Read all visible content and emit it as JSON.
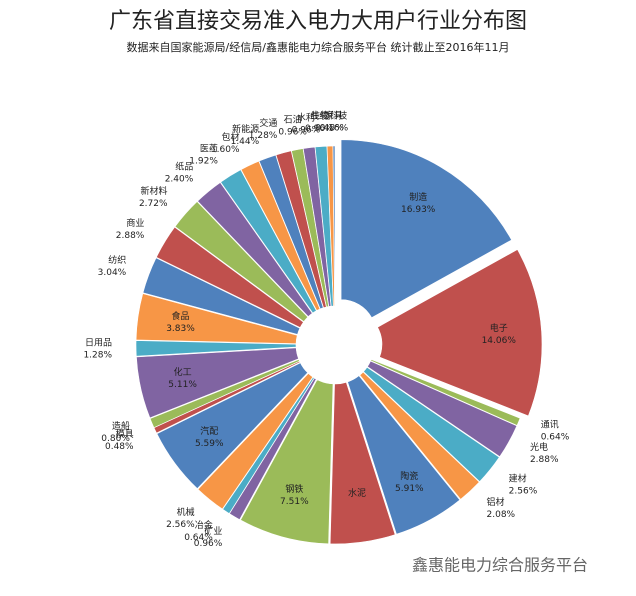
{
  "chart_data": {
    "type": "pie",
    "title": "广东省直接交易准入电力大用户行业分布图",
    "subtitle": "数据来自国家能源局/经信局/鑫惠能电力综合服务平台 统计截止至2016年11月",
    "watermark": "鑫惠能电力综合服务平台",
    "categories": [
      "制造",
      "电子",
      "通讯",
      "光电",
      "建材",
      "铝材",
      "陶瓷",
      "水泥",
      "钢铁",
      "矿业",
      "冶金",
      "机械",
      "汽配",
      "模具",
      "造船",
      "化工",
      "日用品",
      "食品",
      "纺织",
      "商业",
      "新材料",
      "纸品",
      "医药",
      "包材",
      "新能源",
      "交通",
      "石油",
      "水利",
      "线缆",
      "生物科技",
      "家具"
    ],
    "values": [
      16.93,
      14.06,
      0.64,
      2.88,
      2.56,
      2.08,
      5.91,
      5.38,
      7.51,
      0.96,
      0.64,
      2.56,
      5.59,
      0.48,
      0.8,
      5.11,
      1.28,
      3.83,
      3.04,
      2.88,
      2.72,
      2.4,
      1.92,
      1.6,
      1.44,
      1.28,
      0.96,
      0.96,
      0.96,
      0.48,
      0.16
    ],
    "value_labels": [
      "16.93%",
      "14.06%",
      "0.64%",
      "2.88%",
      "2.56%",
      "2.08%",
      "5.91%",
      null,
      "7.51%",
      "0.96%",
      "0.64%",
      "2.56%",
      "5.59%",
      "0.48%",
      "0.80%",
      "5.11%",
      "1.28%",
      "3.83%",
      "3.04%",
      "2.88%",
      "2.72%",
      "2.40%",
      "1.92%",
      "1.60%",
      "1.44%",
      "1.28%",
      "0.96%",
      "0.96%",
      "0.96%",
      "0.48%",
      "0.16%"
    ],
    "colors": [
      "#4f81bd",
      "#c0504d",
      "#9bbb59",
      "#8064a2",
      "#4bacc6",
      "#f79646"
    ]
  }
}
